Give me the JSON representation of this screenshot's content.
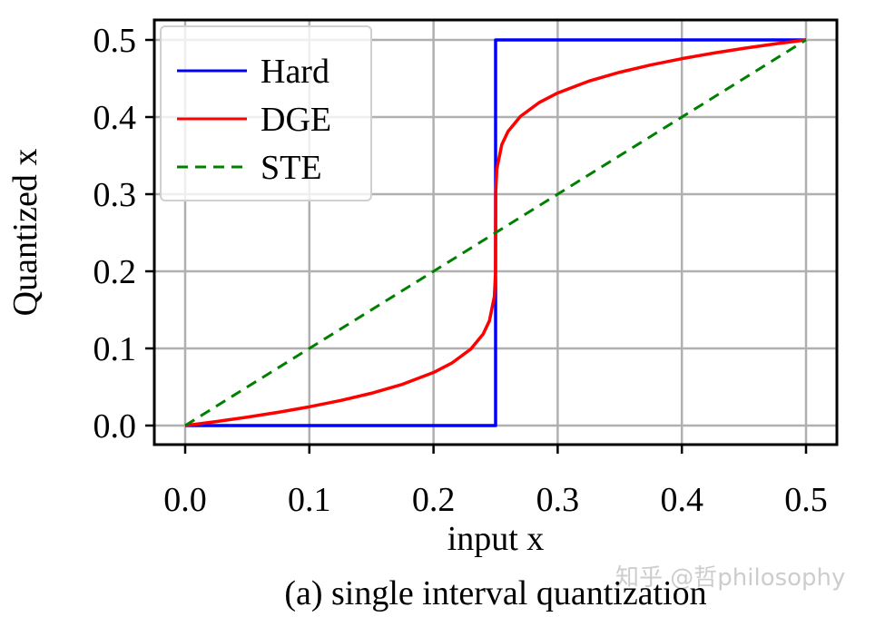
{
  "chart_data": {
    "type": "line",
    "xlabel": "input x",
    "ylabel": "Quantized x",
    "caption": "(a) single interval quantization",
    "xlim": [
      -0.025,
      0.525
    ],
    "ylim": [
      -0.025,
      0.525
    ],
    "xticks": [
      "0.0",
      "0.1",
      "0.2",
      "0.3",
      "0.4",
      "0.5"
    ],
    "yticks": [
      "0.0",
      "0.1",
      "0.2",
      "0.3",
      "0.4",
      "0.5"
    ],
    "grid": true,
    "legend_position": "top-left",
    "series": [
      {
        "name": "Hard",
        "color": "#0000ff",
        "style": "solid",
        "x": [
          0,
          0.25,
          0.25,
          0.5
        ],
        "y": [
          0,
          0,
          0.5,
          0.5
        ]
      },
      {
        "name": "DGE",
        "color": "#ff0000",
        "style": "solid",
        "x": [
          0,
          0.025,
          0.05,
          0.075,
          0.1,
          0.125,
          0.15,
          0.175,
          0.2,
          0.215,
          0.23,
          0.24,
          0.245,
          0.249,
          0.2499,
          0.25,
          0.2501,
          0.251,
          0.255,
          0.26,
          0.27,
          0.285,
          0.3,
          0.325,
          0.35,
          0.375,
          0.4,
          0.425,
          0.45,
          0.475,
          0.5
        ],
        "y": [
          0,
          0.0052,
          0.0109,
          0.0172,
          0.0243,
          0.0324,
          0.0419,
          0.0535,
          0.0688,
          0.0813,
          0.0991,
          0.1187,
          0.1357,
          0.1672,
          0.1977,
          0.25,
          0.3023,
          0.3328,
          0.3643,
          0.3813,
          0.4009,
          0.4187,
          0.4312,
          0.4465,
          0.4581,
          0.4676,
          0.4757,
          0.4828,
          0.4891,
          0.4948,
          0.5
        ]
      },
      {
        "name": "STE",
        "color": "#008000",
        "style": "dashed",
        "x": [
          0,
          0.5
        ],
        "y": [
          0,
          0.5
        ]
      }
    ]
  },
  "watermark": "知乎 @哲philosophy"
}
